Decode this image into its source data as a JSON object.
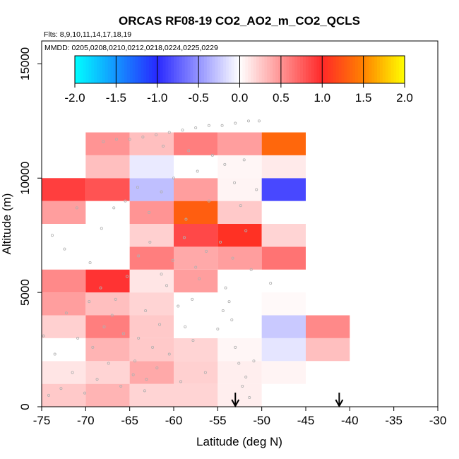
{
  "chart_data": {
    "type": "heatmap",
    "title": "ORCAS RF08-19 CO2_AO2_m_CO2_QCLS",
    "flights_label": "Flts: 8,9,10,11,14,17,18,19",
    "dates_label": "MMDD: 0205,0208,0210,0212,0218,0224,0225,0229",
    "xlabel": "Latitude (deg N)",
    "ylabel": "Altitude (m)",
    "xlim": [
      -75,
      -30
    ],
    "ylim": [
      0,
      16000
    ],
    "x_ticks": [
      "-75",
      "-70",
      "-65",
      "-60",
      "-55",
      "-50",
      "-45",
      "-40",
      "-35",
      "-30"
    ],
    "x_tick_values": [
      -75,
      -70,
      -65,
      -60,
      -55,
      -50,
      -45,
      -40,
      -35,
      -30
    ],
    "y_ticks": [
      "0",
      "5000",
      "10000",
      "15000"
    ],
    "y_tick_values": [
      0,
      5000,
      10000,
      15000
    ],
    "colorbar": {
      "range": [
        -2.0,
        2.0
      ],
      "ticks": [
        "-2.0",
        "-1.5",
        "-1.0",
        "-0.5",
        "0.0",
        "0.5",
        "1.0",
        "1.5",
        "2.0"
      ],
      "tick_values": [
        -2.0,
        -1.5,
        -1.0,
        -0.5,
        0.0,
        0.5,
        1.0,
        1.5,
        2.0
      ]
    },
    "bin_width_lat": 5,
    "bin_height_alt": 1000,
    "cells": [
      {
        "lat": -75,
        "alt": 0,
        "value": 0.25
      },
      {
        "lat": -70,
        "alt": 0,
        "value": 0.35
      },
      {
        "lat": -65,
        "alt": 0,
        "value": 0.2
      },
      {
        "lat": -60,
        "alt": 0,
        "value": 0.2
      },
      {
        "lat": -55,
        "alt": 0,
        "value": 0.08
      },
      {
        "lat": -75,
        "alt": 1000,
        "value": 0.12
      },
      {
        "lat": -70,
        "alt": 1000,
        "value": 0.2
      },
      {
        "lat": -65,
        "alt": 1000,
        "value": 0.4
      },
      {
        "lat": -60,
        "alt": 1000,
        "value": 0.22
      },
      {
        "lat": -55,
        "alt": 1000,
        "value": 0.08
      },
      {
        "lat": -50,
        "alt": 1000,
        "value": 0.05
      },
      {
        "lat": -75,
        "alt": 2000,
        "value": 0.0
      },
      {
        "lat": -70,
        "alt": 2000,
        "value": 0.35
      },
      {
        "lat": -65,
        "alt": 2000,
        "value": 0.25
      },
      {
        "lat": -60,
        "alt": 2000,
        "value": 0.2
      },
      {
        "lat": -55,
        "alt": 2000,
        "value": 0.04
      },
      {
        "lat": -50,
        "alt": 2000,
        "value": -0.12
      },
      {
        "lat": -45,
        "alt": 2000,
        "value": 0.3
      },
      {
        "lat": -75,
        "alt": 3000,
        "value": 0.22
      },
      {
        "lat": -70,
        "alt": 3000,
        "value": 0.6
      },
      {
        "lat": -65,
        "alt": 3000,
        "value": 0.25
      },
      {
        "lat": -60,
        "alt": 3000,
        "value": 0.0
      },
      {
        "lat": -55,
        "alt": 3000,
        "value": 0.0
      },
      {
        "lat": -50,
        "alt": 3000,
        "value": -0.25
      },
      {
        "lat": -45,
        "alt": 3000,
        "value": 0.55
      },
      {
        "lat": -75,
        "alt": 4000,
        "value": 0.45
      },
      {
        "lat": -70,
        "alt": 4000,
        "value": 0.3
      },
      {
        "lat": -65,
        "alt": 4000,
        "value": 0.2
      },
      {
        "lat": -60,
        "alt": 4000,
        "value": 0.0
      },
      {
        "lat": -55,
        "alt": 4000,
        "value": 0.0
      },
      {
        "lat": -50,
        "alt": 4000,
        "value": 0.03
      },
      {
        "lat": -75,
        "alt": 5000,
        "value": 0.55
      },
      {
        "lat": -70,
        "alt": 5000,
        "value": 0.95
      },
      {
        "lat": -65,
        "alt": 5000,
        "value": 0.12
      },
      {
        "lat": -60,
        "alt": 5000,
        "value": 0.45
      },
      {
        "lat": -55,
        "alt": 5000,
        "value": 0.0
      },
      {
        "lat": -65,
        "alt": 6000,
        "value": 0.6
      },
      {
        "lat": -60,
        "alt": 6000,
        "value": 0.4
      },
      {
        "lat": -55,
        "alt": 6000,
        "value": 0.45
      },
      {
        "lat": -50,
        "alt": 6000,
        "value": 0.65
      },
      {
        "lat": -65,
        "alt": 7000,
        "value": 0.22
      },
      {
        "lat": -60,
        "alt": 7000,
        "value": 0.85
      },
      {
        "lat": -55,
        "alt": 7000,
        "value": 1.05
      },
      {
        "lat": -50,
        "alt": 7000,
        "value": 0.2
      },
      {
        "lat": -75,
        "alt": 8000,
        "value": 0.45
      },
      {
        "lat": -65,
        "alt": 8000,
        "value": 0.5
      },
      {
        "lat": -60,
        "alt": 8000,
        "value": 1.3
      },
      {
        "lat": -55,
        "alt": 8000,
        "value": 0.25
      },
      {
        "lat": -75,
        "alt": 9000,
        "value": 0.9
      },
      {
        "lat": -70,
        "alt": 9000,
        "value": 0.8
      },
      {
        "lat": -65,
        "alt": 9000,
        "value": -0.3
      },
      {
        "lat": -60,
        "alt": 9000,
        "value": 0.45
      },
      {
        "lat": -55,
        "alt": 9000,
        "value": 0.05
      },
      {
        "lat": -50,
        "alt": 9000,
        "value": -0.85
      },
      {
        "lat": -70,
        "alt": 10000,
        "value": 0.3
      },
      {
        "lat": -65,
        "alt": 10000,
        "value": -0.1
      },
      {
        "lat": -60,
        "alt": 10000,
        "value": 0.0
      },
      {
        "lat": -55,
        "alt": 10000,
        "value": 0.04
      },
      {
        "lat": -50,
        "alt": 10000,
        "value": 0.1
      },
      {
        "lat": -70,
        "alt": 11000,
        "value": 0.5
      },
      {
        "lat": -65,
        "alt": 11000,
        "value": 0.3
      },
      {
        "lat": -60,
        "alt": 11000,
        "value": 0.6
      },
      {
        "lat": -55,
        "alt": 11000,
        "value": 0.45
      },
      {
        "lat": -50,
        "alt": 11000,
        "value": 1.35
      }
    ],
    "sample_points": [
      [
        -73.8,
        7500
      ],
      [
        -72.4,
        6900
      ],
      [
        -71.0,
        8700
      ],
      [
        -69.5,
        6300
      ],
      [
        -68.2,
        7800
      ],
      [
        -66.8,
        8700
      ],
      [
        -65.5,
        9000
      ],
      [
        -64.1,
        9600
      ],
      [
        -62.8,
        8500
      ],
      [
        -61.4,
        9400
      ],
      [
        -60.0,
        10000
      ],
      [
        -58.6,
        8200
      ],
      [
        -57.3,
        10300
      ],
      [
        -56.0,
        9000
      ],
      [
        -54.7,
        7200
      ],
      [
        -53.3,
        6500
      ],
      [
        -52.0,
        10800
      ],
      [
        -51.2,
        6000
      ],
      [
        -50.6,
        9500
      ],
      [
        -49.0,
        5400
      ],
      [
        -74.2,
        500
      ],
      [
        -72.8,
        800
      ],
      [
        -71.5,
        1500
      ],
      [
        -70.1,
        600
      ],
      [
        -68.7,
        1200
      ],
      [
        -67.4,
        1900
      ],
      [
        -66.0,
        900
      ],
      [
        -64.6,
        1400
      ],
      [
        -63.3,
        700
      ],
      [
        -61.9,
        1700
      ],
      [
        -60.5,
        2300
      ],
      [
        -59.2,
        1100
      ],
      [
        -57.8,
        2900
      ],
      [
        -56.4,
        1500
      ],
      [
        -55.0,
        3400
      ],
      [
        -54.4,
        4200
      ],
      [
        -54.1,
        5200
      ],
      [
        -53.7,
        4600
      ],
      [
        -53.4,
        3800
      ],
      [
        -53.0,
        2600
      ],
      [
        -52.6,
        1900
      ],
      [
        -52.2,
        900
      ],
      [
        -51.8,
        1300
      ],
      [
        -51.4,
        400
      ],
      [
        -50.9,
        2000
      ],
      [
        -64.0,
        3000
      ],
      [
        -63.2,
        4200
      ],
      [
        -62.4,
        2600
      ],
      [
        -61.6,
        3600
      ],
      [
        -60.8,
        5300
      ],
      [
        -59.5,
        4400
      ],
      [
        -58.7,
        3500
      ],
      [
        -57.9,
        4700
      ],
      [
        -57.1,
        5600
      ],
      [
        -56.3,
        6800
      ],
      [
        -69.2,
        2600
      ],
      [
        -67.9,
        3500
      ],
      [
        -66.6,
        4700
      ],
      [
        -65.3,
        5700
      ],
      [
        -64.0,
        6600
      ],
      [
        -62.7,
        7200
      ],
      [
        -61.4,
        5800
      ],
      [
        -60.1,
        6400
      ],
      [
        -58.8,
        7400
      ],
      [
        -57.5,
        6100
      ],
      [
        -74.8,
        3100
      ],
      [
        -73.5,
        2300
      ],
      [
        -72.2,
        4100
      ],
      [
        -70.9,
        3000
      ],
      [
        -69.6,
        4600
      ],
      [
        -68.3,
        5200
      ],
      [
        -67.0,
        4000
      ],
      [
        -65.7,
        3200
      ],
      [
        -64.4,
        2000
      ],
      [
        -63.1,
        1200
      ],
      [
        -65.0,
        11700
      ],
      [
        -63.5,
        11800
      ],
      [
        -62.0,
        11900
      ],
      [
        -60.5,
        12000
      ],
      [
        -59.0,
        12100
      ],
      [
        -57.5,
        12200
      ],
      [
        -56.0,
        12300
      ],
      [
        -54.5,
        12300
      ],
      [
        -53.0,
        12400
      ],
      [
        -51.5,
        12500
      ],
      [
        -50.3,
        12500
      ],
      [
        -68.0,
        11600
      ],
      [
        -66.5,
        11700
      ],
      [
        -61.2,
        11400
      ],
      [
        -58.3,
        11200
      ],
      [
        -55.6,
        11000
      ],
      [
        -54.2,
        10600
      ],
      [
        -53.1,
        9800
      ],
      [
        -52.4,
        8800
      ],
      [
        -51.8,
        7700
      ]
    ],
    "arrows_lat": [
      -53,
      -41.2
    ]
  }
}
